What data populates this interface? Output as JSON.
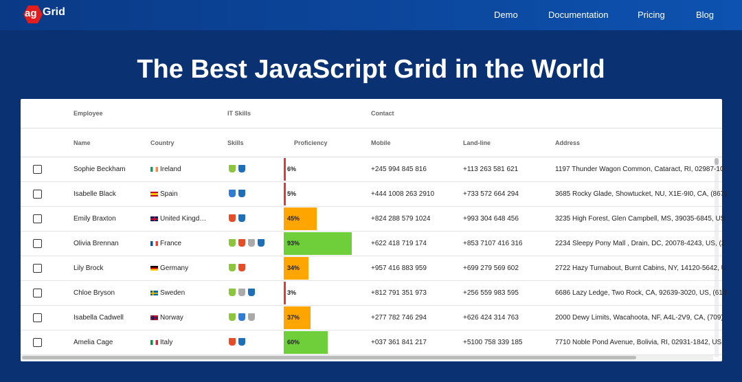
{
  "header": {
    "logo": [
      "ag",
      "Grid"
    ],
    "nav": [
      "Demo",
      "Documentation",
      "Pricing",
      "Blog"
    ]
  },
  "title": "The Best JavaScript Grid in the World",
  "grid": {
    "groups": [
      "Employee",
      "IT Skills",
      "Contact"
    ],
    "columns": [
      "Name",
      "Country",
      "Skills",
      "Proficiency",
      "Mobile",
      "Land-line",
      "Address"
    ],
    "rows": [
      {
        "name": "Sophie Beckham",
        "country": "Ireland",
        "proficiency": {
          "value": 6,
          "label": "6%"
        },
        "mobile": "+245 994 845 816",
        "landline": "+113 263 581 621",
        "address": "1197 Thunder Wagon Common, Cataract, RI, 02987-10"
      },
      {
        "name": "Isabelle Black",
        "country": "Spain",
        "proficiency": {
          "value": 5,
          "label": "5%"
        },
        "mobile": "+444 1008 263 2910",
        "landline": "+733 572 664 294",
        "address": "3685 Rocky Glade, Showtucket, NU, X1E-9I0, CA, (867)"
      },
      {
        "name": "Emily Braxton",
        "country": "United Kingd…",
        "proficiency": {
          "value": 45,
          "label": "45%"
        },
        "mobile": "+824 288 579 1024",
        "landline": "+993 304 648 456",
        "address": "3235 High Forest, Glen Campbell, MS, 39035-6845, US"
      },
      {
        "name": "Olivia Brennan",
        "country": "France",
        "proficiency": {
          "value": 93,
          "label": "93%"
        },
        "mobile": "+622 418 719 174",
        "landline": "+853 7107 416 316",
        "address": "2234 Sleepy Pony Mall , Drain, DC, 20078-4243, US, (2"
      },
      {
        "name": "Lily Brock",
        "country": "Germany",
        "proficiency": {
          "value": 34,
          "label": "34%"
        },
        "mobile": "+957 416 883 959",
        "landline": "+699 279 569 602",
        "address": "2722 Hazy Turnabout, Burnt Cabins, NY, 14120-5642, U"
      },
      {
        "name": "Chloe Bryson",
        "country": "Sweden",
        "proficiency": {
          "value": 3,
          "label": "3%"
        },
        "mobile": "+812 791 351 973",
        "landline": "+256 559 983 595",
        "address": "6686 Lazy Ledge, Two Rock, CA, 92639-3020, US, (619"
      },
      {
        "name": "Isabella Cadwell",
        "country": "Norway",
        "proficiency": {
          "value": 37,
          "label": "37%"
        },
        "mobile": "+277 782 746 294",
        "landline": "+626 424 314 763",
        "address": "2000 Dewy Limits, Wacahoota, NF, A4L-2V9, CA, (709)"
      },
      {
        "name": "Amelia Cage",
        "country": "Italy",
        "proficiency": {
          "value": 60,
          "label": "60%"
        },
        "mobile": "+037 361 841 217",
        "landline": "+5100 758 339 185",
        "address": "7710 Noble Pond Avenue, Bolivia, RI, 02931-1842, US,"
      }
    ]
  }
}
